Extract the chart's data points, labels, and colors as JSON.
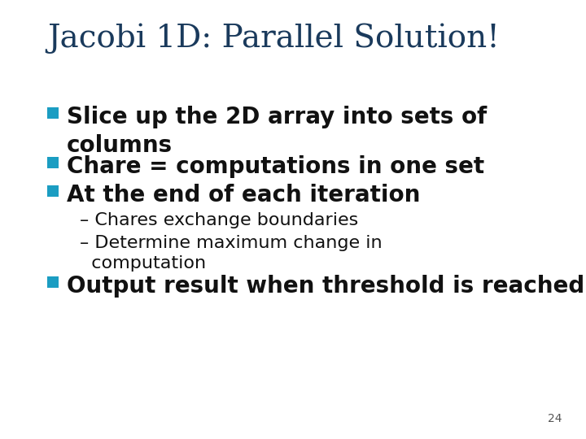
{
  "title": "Jacobi 1D: Parallel Solution!",
  "title_color": "#1a3a5c",
  "title_fontsize": 28,
  "background_color": "#FFFFFF",
  "bullet_color": "#1B9DC2",
  "bullet_text_color": "#111111",
  "sub_bullet_text_color": "#111111",
  "page_number": "24",
  "bullet_fontsize": 20,
  "sub_fontsize": 16,
  "items": [
    {
      "level": 1,
      "lines": [
        "Slice up the 2D array into sets of",
        "columns"
      ]
    },
    {
      "level": 1,
      "lines": [
        "Chare = computations in one set"
      ]
    },
    {
      "level": 1,
      "lines": [
        "At the end of each iteration"
      ]
    },
    {
      "level": 2,
      "lines": [
        "– Chares exchange boundaries"
      ]
    },
    {
      "level": 2,
      "lines": [
        "– Determine maximum change in",
        "  computation"
      ]
    },
    {
      "level": 1,
      "lines": [
        "Output result when threshold is reached"
      ]
    }
  ]
}
